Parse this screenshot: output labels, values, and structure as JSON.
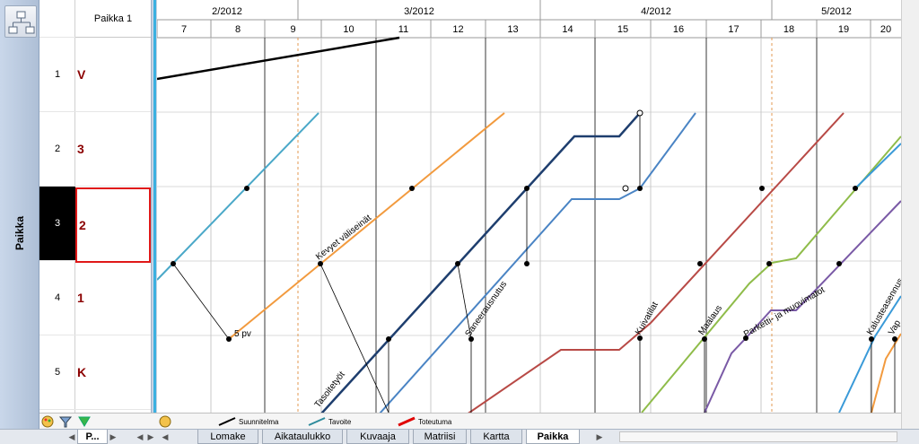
{
  "sidebar": {
    "vertical_label": "Paikka",
    "org_button_icon": "org-chart-icon"
  },
  "locations": {
    "header": "Paikka 1",
    "rows": [
      {
        "num": "1",
        "name": "V"
      },
      {
        "num": "2",
        "name": "3"
      },
      {
        "num": "3",
        "name": "2",
        "selected": true
      },
      {
        "num": "4",
        "name": "1"
      },
      {
        "num": "5",
        "name": "K"
      }
    ]
  },
  "timeline": {
    "months": [
      "2/2012",
      "3/2012",
      "4/2012",
      "5/2012"
    ],
    "weeks": [
      "7",
      "8",
      "9",
      "10",
      "11",
      "12",
      "13",
      "14",
      "15",
      "16",
      "17",
      "18",
      "19",
      "20"
    ]
  },
  "tasks": {
    "labels": [
      "Kevyet väliseinät",
      "Saneerausnutus",
      "Tasoitetyöt",
      "Kuivatilat",
      "Maalaus",
      "Parketti- ja muovimatot",
      "Kalusteasennus",
      "Vap"
    ],
    "annotation": "5 pv"
  },
  "legend": {
    "items": [
      "Suunnitelma",
      "Tavoite",
      "Toteutuma"
    ],
    "colors": [
      "#000000",
      "#2e8b9c",
      "#e00000"
    ]
  },
  "tabs": {
    "left_tab": "P...",
    "items": [
      "Lomake",
      "Aikataulukko",
      "Kuvaaja",
      "Matriisi",
      "Kartta",
      "Paikka"
    ],
    "active": "Paikka"
  },
  "colors": {
    "selection": "#e01818",
    "accent": "#3bb0e0"
  }
}
